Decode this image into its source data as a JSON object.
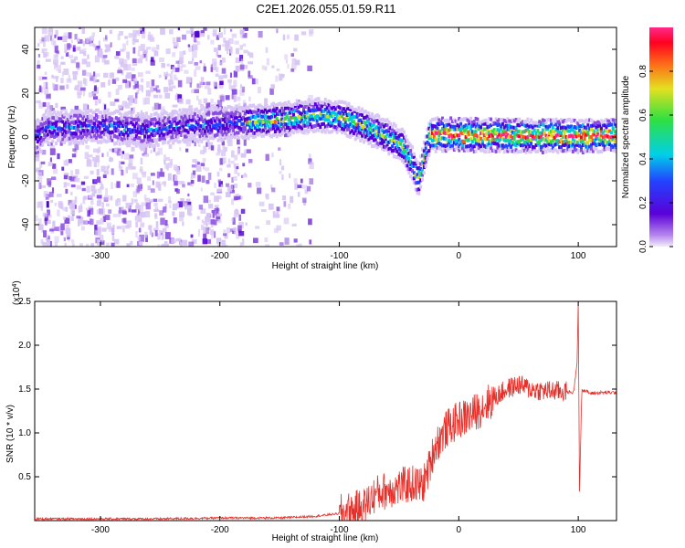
{
  "figure": {
    "title": "C2E1.2026.055.01.59.R11"
  },
  "chart_data": [
    {
      "type": "heatmap",
      "xlabel": "Height of straight line (km)",
      "ylabel": "Frequency (Hz)",
      "xlim": [
        -355,
        132
      ],
      "ylim": [
        -50,
        50
      ],
      "xticks": [
        -300,
        -200,
        -100,
        0,
        100
      ],
      "yticks": [
        -40,
        -20,
        0,
        20,
        40
      ],
      "colorbar": {
        "label": "Normalized spectral amplitude",
        "range": [
          0,
          1
        ],
        "ticks": [
          "0.0",
          "0.2",
          "0.4",
          "0.6",
          "0.8"
        ],
        "colormap": "rainbow",
        "colors": [
          "#ffffff",
          "#d8c6f4",
          "#8a4de0",
          "#5400d8",
          "#2244ff",
          "#00c8e0",
          "#34d848",
          "#d8d820",
          "#ff5a14",
          "#ff0020",
          "#ff2090"
        ]
      },
      "signal_ridge": [
        {
          "x": -350,
          "y": 4
        },
        {
          "x": -300,
          "y": 5
        },
        {
          "x": -260,
          "y": 3
        },
        {
          "x": -230,
          "y": 5
        },
        {
          "x": -175,
          "y": 7
        },
        {
          "x": -150,
          "y": 8
        },
        {
          "x": -120,
          "y": 10
        },
        {
          "x": -100,
          "y": 9
        },
        {
          "x": -80,
          "y": 5
        },
        {
          "x": -60,
          "y": 0
        },
        {
          "x": -48,
          "y": -4
        },
        {
          "x": -40,
          "y": -12
        },
        {
          "x": -35,
          "y": -20
        },
        {
          "x": -25,
          "y": 1
        },
        {
          "x": 0,
          "y": 1
        },
        {
          "x": 50,
          "y": 0.5
        },
        {
          "x": 100,
          "y": 0.5
        },
        {
          "x": 132,
          "y": 0.5
        }
      ]
    },
    {
      "type": "line",
      "xlabel": "Height of straight line (km)",
      "ylabel": "SNR (10 * v/v)",
      "y_multiplier": "(x10",
      "y_multiplier_exp": "4",
      "xlim": [
        -355,
        132
      ],
      "ylim": [
        0,
        2.5
      ],
      "xticks": [
        -300,
        -200,
        -100,
        0,
        100
      ],
      "yticks": [
        "0.5",
        "1.0",
        "1.5",
        "2.0",
        "2.5"
      ],
      "color": "#e8302a",
      "series": [
        {
          "x": [
            -355,
            -300,
            -250,
            -200,
            -150,
            -120,
            -100,
            -80,
            -70,
            -60,
            -50,
            -40,
            -30,
            -25,
            -20,
            -10,
            0,
            10,
            20,
            30,
            40,
            50,
            60,
            70,
            80,
            90,
            96,
            99,
            100,
            101,
            103,
            110,
            120,
            132
          ],
          "y": [
            0.02,
            0.02,
            0.02,
            0.03,
            0.03,
            0.05,
            0.08,
            0.15,
            0.3,
            0.35,
            0.38,
            0.42,
            0.4,
            0.6,
            0.85,
            1.05,
            1.15,
            1.2,
            1.3,
            1.4,
            1.5,
            1.55,
            1.5,
            1.48,
            1.48,
            1.47,
            1.46,
            1.8,
            2.5,
            0.3,
            1.5,
            1.45,
            1.46,
            1.46
          ]
        }
      ]
    }
  ]
}
